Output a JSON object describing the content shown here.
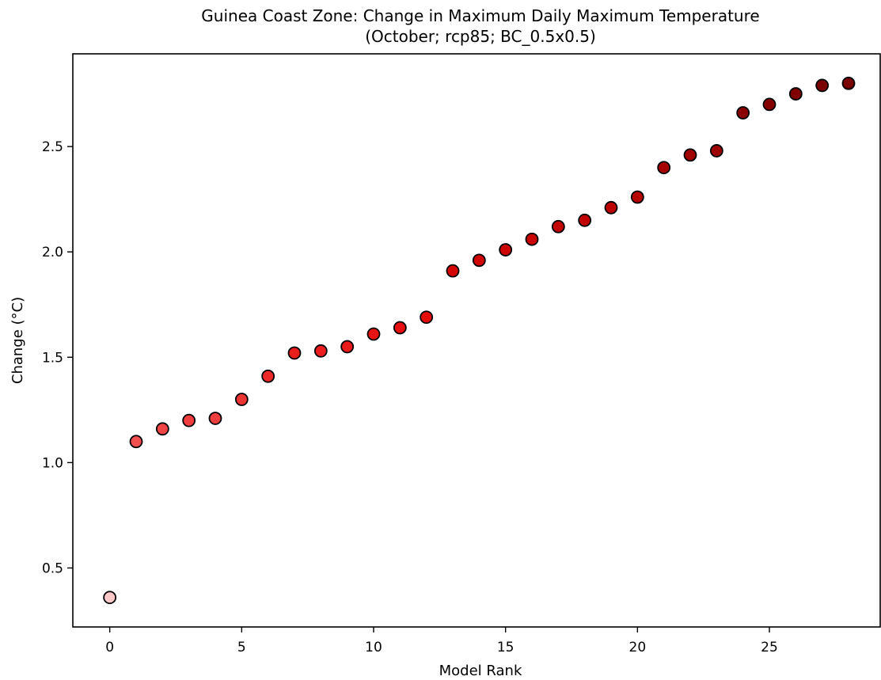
{
  "chart_data": {
    "type": "scatter",
    "title": "Guinea Coast Zone: Change in Maximum Daily Maximum Temperature",
    "subtitle": "(October; rcp85; BC_0.5x0.5)",
    "xlabel": "Model Rank",
    "ylabel": "Change (°C)",
    "xlim": [
      -1.4,
      29.2
    ],
    "ylim": [
      0.22,
      2.94
    ],
    "xticks": [
      0,
      5,
      10,
      15,
      20,
      25
    ],
    "yticks": [
      0.5,
      1.0,
      1.5,
      2.0,
      2.5
    ],
    "x_tick_labels": [
      "0",
      "5",
      "10",
      "15",
      "20",
      "25"
    ],
    "y_tick_labels": [
      "0.5",
      "1.0",
      "1.5",
      "2.0",
      "2.5"
    ],
    "grid": false,
    "marker_edge_color": "#000000",
    "color_low": "#ffc8c8",
    "color_high": "#7a0000",
    "points": [
      {
        "x": 0,
        "y": 0.36
      },
      {
        "x": 1,
        "y": 1.1
      },
      {
        "x": 2,
        "y": 1.16
      },
      {
        "x": 3,
        "y": 1.2
      },
      {
        "x": 4,
        "y": 1.21
      },
      {
        "x": 5,
        "y": 1.3
      },
      {
        "x": 6,
        "y": 1.41
      },
      {
        "x": 7,
        "y": 1.52
      },
      {
        "x": 8,
        "y": 1.53
      },
      {
        "x": 9,
        "y": 1.55
      },
      {
        "x": 10,
        "y": 1.61
      },
      {
        "x": 11,
        "y": 1.64
      },
      {
        "x": 12,
        "y": 1.69
      },
      {
        "x": 13,
        "y": 1.91
      },
      {
        "x": 14,
        "y": 1.96
      },
      {
        "x": 15,
        "y": 2.01
      },
      {
        "x": 16,
        "y": 2.06
      },
      {
        "x": 17,
        "y": 2.12
      },
      {
        "x": 18,
        "y": 2.15
      },
      {
        "x": 19,
        "y": 2.21
      },
      {
        "x": 20,
        "y": 2.26
      },
      {
        "x": 21,
        "y": 2.4
      },
      {
        "x": 22,
        "y": 2.46
      },
      {
        "x": 23,
        "y": 2.48
      },
      {
        "x": 24,
        "y": 2.66
      },
      {
        "x": 25,
        "y": 2.7
      },
      {
        "x": 26,
        "y": 2.75
      },
      {
        "x": 27,
        "y": 2.79
      },
      {
        "x": 28,
        "y": 2.8
      }
    ]
  }
}
